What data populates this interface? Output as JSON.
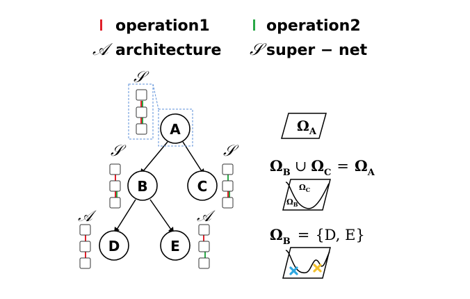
{
  "legend": {
    "op1": {
      "label": "operation1",
      "color": "#e0202a"
    },
    "op2": {
      "label": "operation2",
      "color": "#29a847"
    },
    "arch": {
      "symbol": "𝒜",
      "label": "architecture"
    },
    "supernet": {
      "symbol": "𝒮",
      "label": "super − net"
    }
  },
  "symbols": {
    "S": "𝒮",
    "A": "𝒜"
  },
  "nodes": {
    "A": "A",
    "B": "B",
    "C": "C",
    "D": "D",
    "E": "E"
  },
  "right": {
    "omega_A": {
      "main": "Ω",
      "sub": "A"
    },
    "union_eq": {
      "o1": "Ω",
      "s1": "B",
      "cup": "∪",
      "o2": "Ω",
      "s2": "C",
      "eq": "=",
      "o3": "Ω",
      "s3": "A"
    },
    "region_c": {
      "main": "Ω",
      "sub": "C"
    },
    "region_b": {
      "main": "Ω",
      "sub": "B"
    },
    "set_eq": {
      "o": "Ω",
      "s": "B",
      "eq": "=",
      "set": "{D, E}"
    },
    "marker_colors": {
      "blue": "#2ea7e0",
      "yellow": "#f2c12e"
    }
  }
}
